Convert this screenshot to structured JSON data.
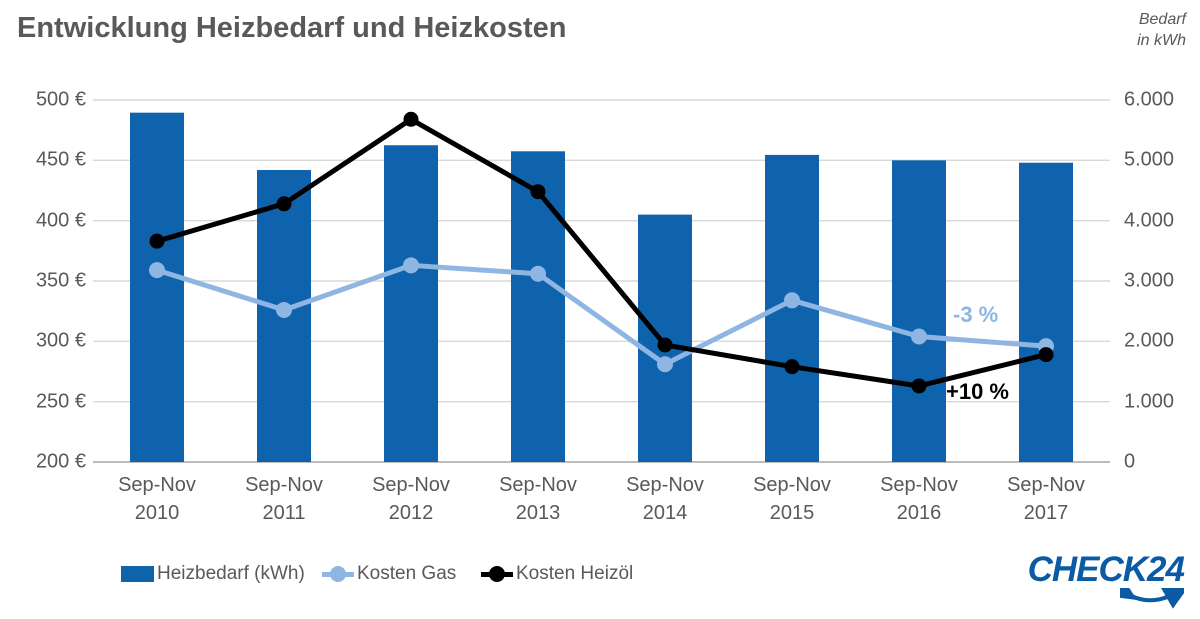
{
  "title": "Entwicklung Heizbedarf und Heizkosten",
  "right_axis_title": {
    "line1": "Bedarf",
    "line2": "in kWh"
  },
  "chart_data": {
    "type": "bar+line combo",
    "categories": [
      {
        "period": "Sep-Nov",
        "year": "2010"
      },
      {
        "period": "Sep-Nov",
        "year": "2011"
      },
      {
        "period": "Sep-Nov",
        "year": "2012"
      },
      {
        "period": "Sep-Nov",
        "year": "2013"
      },
      {
        "period": "Sep-Nov",
        "year": "2014"
      },
      {
        "period": "Sep-Nov",
        "year": "2015"
      },
      {
        "period": "Sep-Nov",
        "year": "2016"
      },
      {
        "period": "Sep-Nov",
        "year": "2017"
      }
    ],
    "series": [
      {
        "name": "Heizbedarf (kWh)",
        "type": "bar",
        "axis": "right",
        "values": [
          5790,
          4840,
          5250,
          5150,
          4100,
          5090,
          5000,
          4960
        ]
      },
      {
        "name": "Kosten Gas",
        "type": "line",
        "axis": "left",
        "values": [
          359,
          326,
          363,
          356,
          281,
          334,
          304,
          296
        ]
      },
      {
        "name": "Kosten Heizöl",
        "type": "line",
        "axis": "left",
        "values": [
          383,
          414,
          484,
          424,
          297,
          279,
          263,
          289
        ]
      }
    ],
    "left_axis": {
      "ticks": [
        "500 €",
        "450 €",
        "400 €",
        "350 €",
        "300 €",
        "250 €",
        "200 €"
      ],
      "min": 200,
      "max": 500,
      "unit": "EUR"
    },
    "right_axis": {
      "ticks": [
        "6.000",
        "5.000",
        "4.000",
        "3.000",
        "2.000",
        "1.000",
        "0"
      ],
      "min": 0,
      "max": 6000,
      "unit": "kWh"
    },
    "grid": "horizontal",
    "legend_position": "bottom"
  },
  "annotations": [
    {
      "series": "Kosten Gas",
      "text": "-3 %"
    },
    {
      "series": "Kosten Heizöl",
      "text": "+10 %"
    }
  ],
  "logo": {
    "text": "CHECK24"
  },
  "colors": {
    "bar": "#0f63ad",
    "gas": "#8fb6e3",
    "oil": "#000000",
    "text": "#595959",
    "grid": "#d9d9d9",
    "axis_line": "#a6a6a6",
    "logo_blue": "#0b5aa4"
  }
}
